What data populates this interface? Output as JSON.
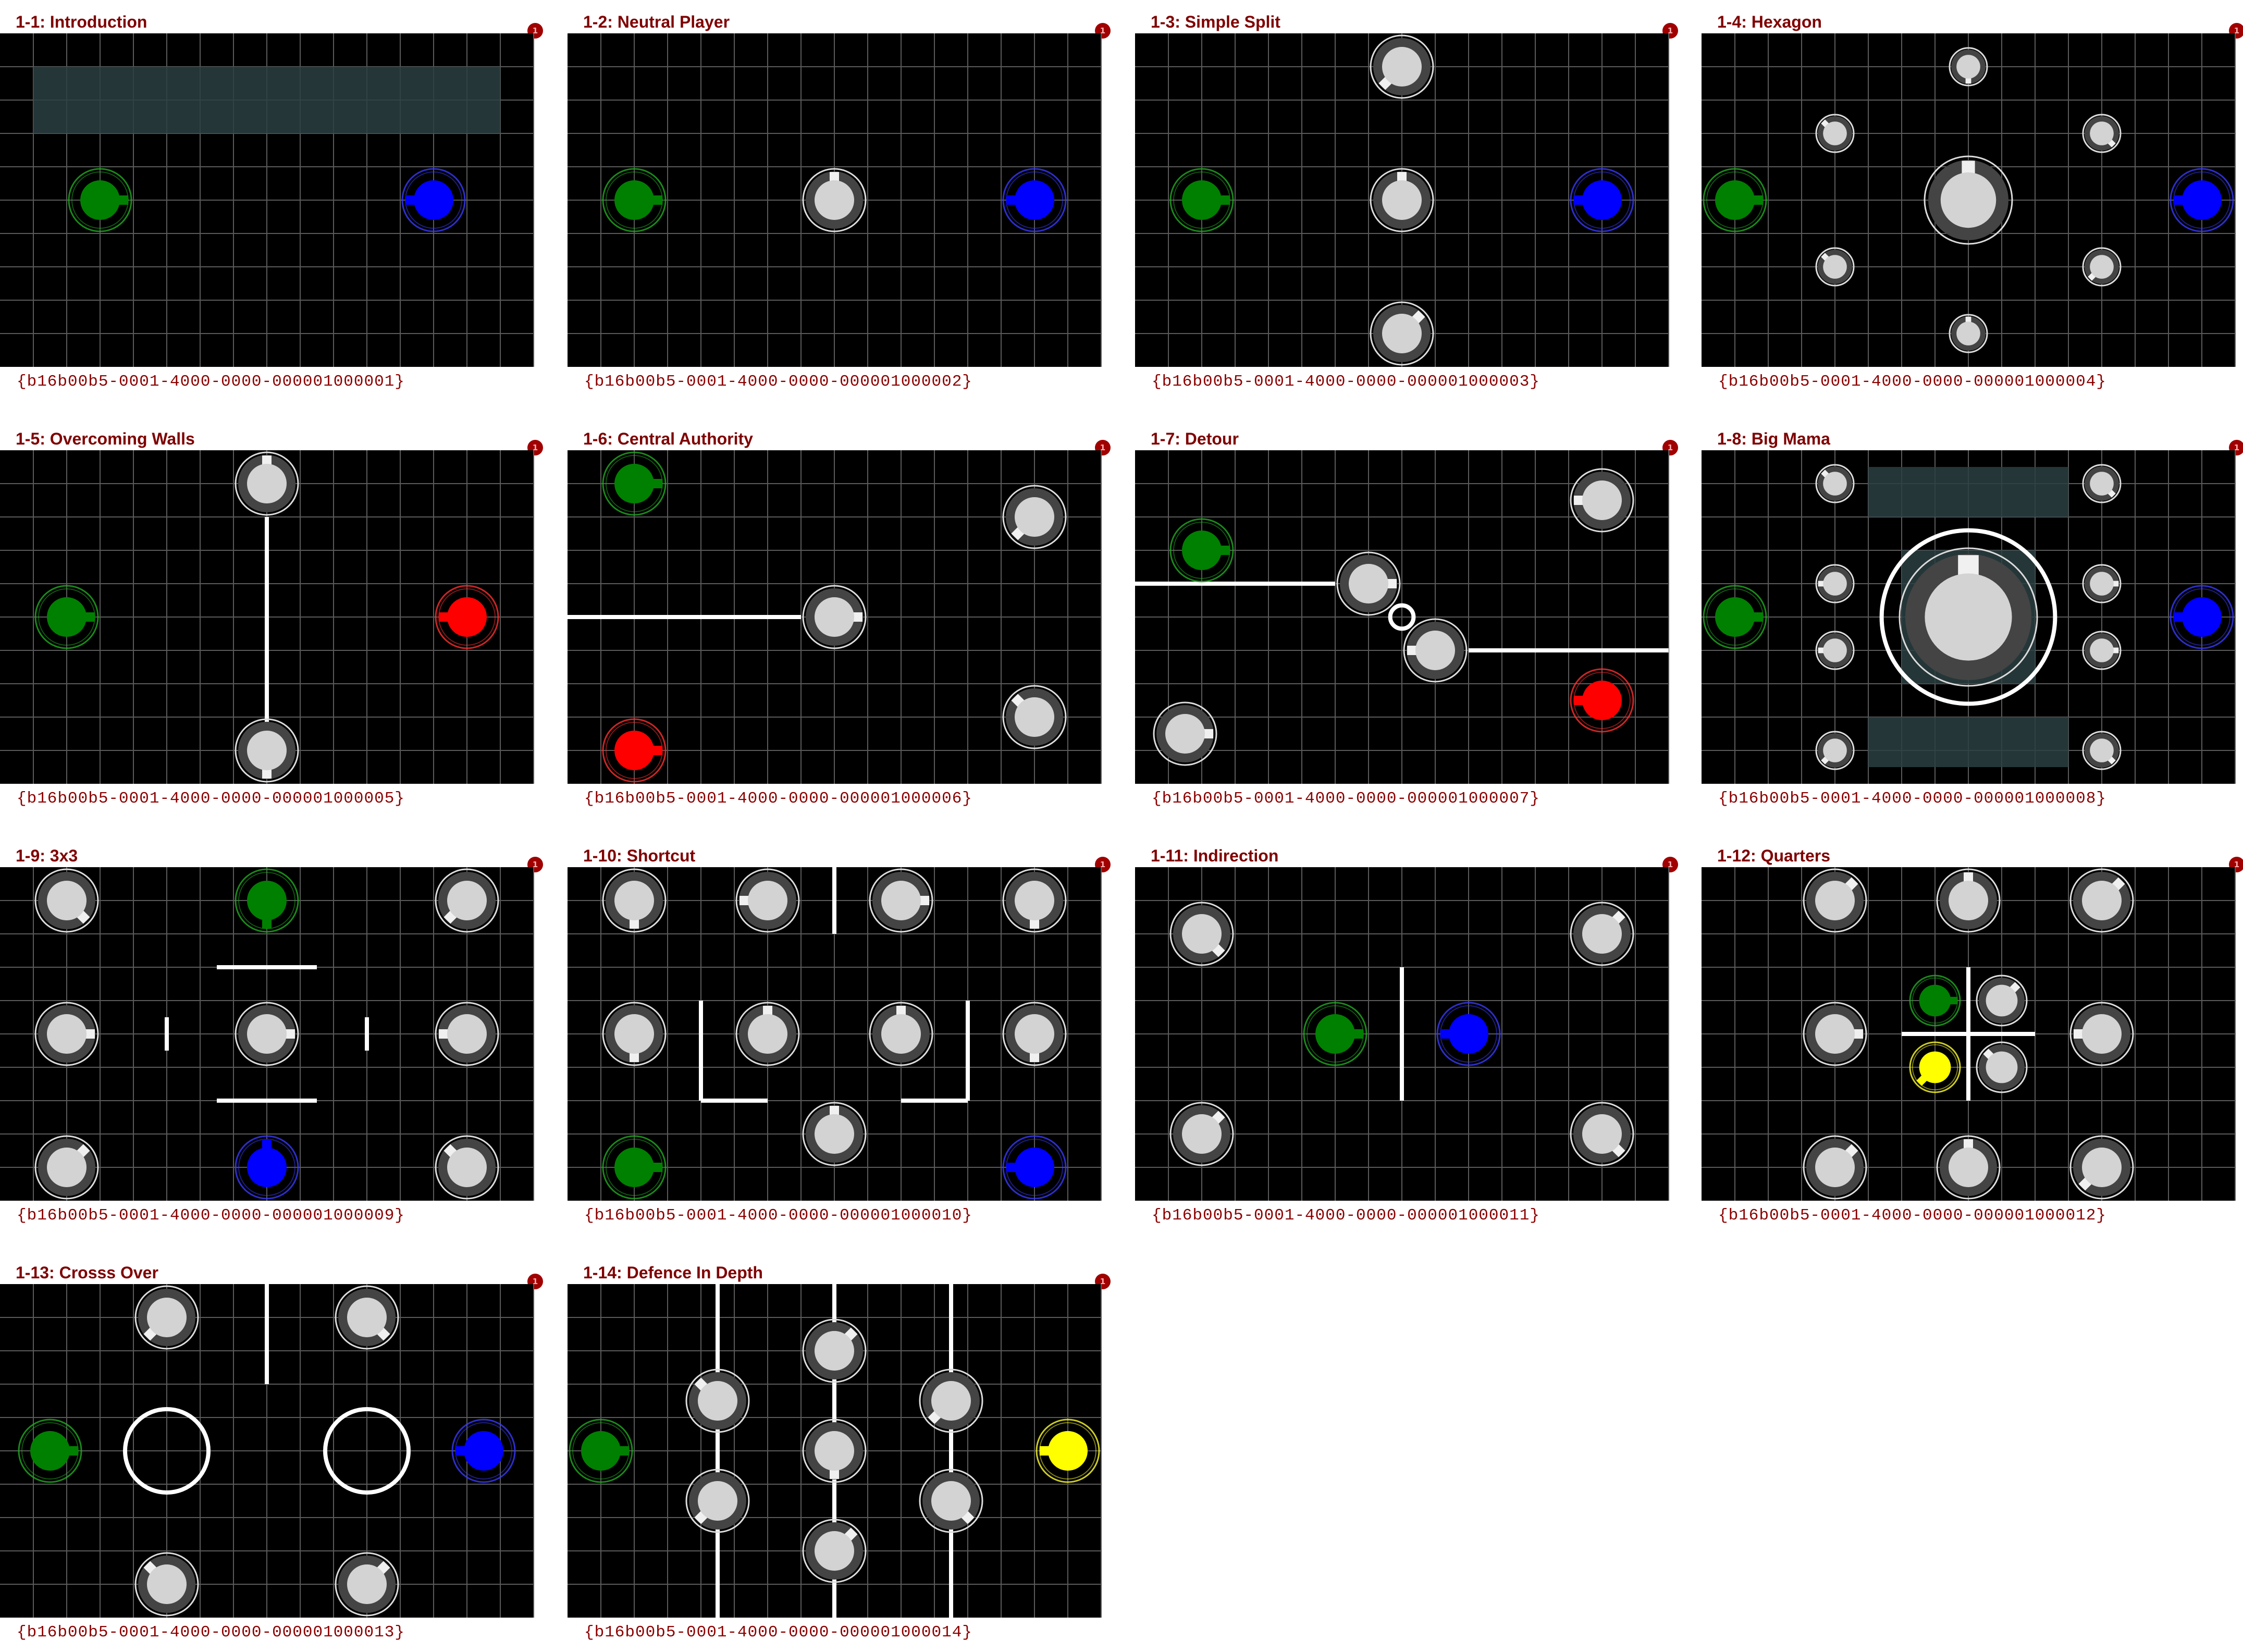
{
  "colors": {
    "background": "#000000",
    "grid": "#5a5a5a",
    "neutral": "#d3d3d3",
    "green": "#008000",
    "blue": "#0000ff",
    "red": "#ff0000",
    "yellow": "#ffff00",
    "wall": "#ffffff",
    "zone": "#2b3f42",
    "title": "#7f0000",
    "badge": "#a00000"
  },
  "levels": [
    {
      "title": "1-1: Introduction",
      "guid": "{b16b00b5-0001-4000-0000-000001000001}",
      "badge": "1",
      "zones": [
        [
          1,
          1,
          15,
          3
        ]
      ],
      "walls": [],
      "nodes": [
        [
          "green",
          3,
          5,
          1,
          0
        ],
        [
          "blue",
          13,
          5,
          1,
          180
        ]
      ]
    },
    {
      "title": "1-2: Neutral Player",
      "guid": "{b16b00b5-0001-4000-0000-000001000002}",
      "badge": "1",
      "zones": [],
      "walls": [],
      "nodes": [
        [
          "green",
          2,
          5,
          1,
          0
        ],
        [
          "neutral",
          8,
          5,
          1,
          270
        ],
        [
          "blue",
          14,
          5,
          1,
          180
        ]
      ]
    },
    {
      "title": "1-3: Simple Split",
      "guid": "{b16b00b5-0001-4000-0000-000001000003}",
      "badge": "1",
      "zones": [],
      "walls": [],
      "nodes": [
        [
          "green",
          2,
          5,
          1,
          0
        ],
        [
          "neutral",
          8,
          1,
          1,
          135
        ],
        [
          "neutral",
          8,
          5,
          1,
          270
        ],
        [
          "neutral",
          8,
          9,
          1,
          315
        ],
        [
          "blue",
          14,
          5,
          1,
          180
        ]
      ]
    },
    {
      "title": "1-4: Hexagon",
      "guid": "{b16b00b5-0001-4000-0000-000001000004}",
      "badge": "1",
      "zones": [],
      "walls": [],
      "nodes": [
        [
          "green",
          1,
          5,
          1,
          0
        ],
        [
          "neutral",
          8,
          1,
          0.6,
          90
        ],
        [
          "neutral",
          4,
          3,
          0.6,
          225
        ],
        [
          "neutral",
          12,
          3,
          0.6,
          45
        ],
        [
          "neutral",
          8,
          5,
          1.4,
          270
        ],
        [
          "neutral",
          4,
          7,
          0.6,
          225
        ],
        [
          "neutral",
          12,
          7,
          0.6,
          135
        ],
        [
          "neutral",
          8,
          9,
          0.6,
          270
        ],
        [
          "blue",
          15,
          5,
          1,
          180
        ]
      ]
    },
    {
      "title": "1-5: Overcoming Walls",
      "guid": "{b16b00b5-0001-4000-0000-000001000005}",
      "badge": "1",
      "zones": [],
      "walls": [
        [
          8,
          2,
          8,
          9
        ]
      ],
      "nodes": [
        [
          "green",
          2,
          5,
          1,
          0
        ],
        [
          "neutral",
          8,
          1,
          1,
          270
        ],
        [
          "neutral",
          8,
          9,
          1,
          90
        ],
        [
          "red",
          14,
          5,
          1,
          180
        ]
      ]
    },
    {
      "title": "1-6: Central Authority",
      "guid": "{b16b00b5-0001-4000-0000-000001000006}",
      "badge": "1",
      "zones": [],
      "walls": [
        [
          0,
          5,
          7,
          5
        ]
      ],
      "nodes": [
        [
          "green",
          2,
          1,
          1,
          0
        ],
        [
          "neutral",
          14,
          2,
          1,
          135
        ],
        [
          "neutral",
          8,
          5,
          1,
          0
        ],
        [
          "neutral",
          14,
          8,
          1,
          225
        ],
        [
          "red",
          2,
          9,
          1,
          0
        ]
      ]
    },
    {
      "title": "1-7: Detour",
      "guid": "{b16b00b5-0001-4000-0000-000001000007}",
      "badge": "1",
      "zones": [],
      "walls": [
        [
          0,
          4,
          6,
          4
        ],
        [
          10,
          6,
          16,
          6
        ]
      ],
      "rings": [
        [
          8,
          5,
          0.35
        ]
      ],
      "nodes": [
        [
          "green",
          2,
          3,
          1,
          0
        ],
        [
          "neutral",
          14,
          1.5,
          1,
          180
        ],
        [
          "neutral",
          7,
          4,
          1,
          0
        ],
        [
          "neutral",
          9,
          6,
          1,
          180
        ],
        [
          "red",
          14,
          7.5,
          1,
          180
        ],
        [
          "neutral",
          1.5,
          8.5,
          1,
          0
        ]
      ]
    },
    {
      "title": "1-8: Big Mama",
      "guid": "{b16b00b5-0001-4000-0000-000001000008}",
      "badge": "1",
      "zones": [
        [
          5,
          0.5,
          11,
          2
        ],
        [
          5,
          8,
          11,
          9.5
        ],
        [
          6,
          3,
          10,
          7
        ]
      ],
      "walls": [],
      "rings": [
        [
          8,
          5,
          2.6
        ]
      ],
      "nodes": [
        [
          "green",
          1,
          5,
          1,
          0
        ],
        [
          "neutral",
          4,
          1,
          0.6,
          225
        ],
        [
          "neutral",
          12,
          1,
          0.6,
          45
        ],
        [
          "neutral",
          4,
          4,
          0.6,
          180
        ],
        [
          "neutral",
          12,
          4,
          0.6,
          0
        ],
        [
          "neutral",
          8,
          5,
          2.2,
          270
        ],
        [
          "neutral",
          4,
          6,
          0.6,
          180
        ],
        [
          "neutral",
          12,
          6,
          0.6,
          0
        ],
        [
          "neutral",
          4,
          9,
          0.6,
          135
        ],
        [
          "neutral",
          12,
          9,
          0.6,
          45
        ],
        [
          "blue",
          15,
          5,
          1,
          180
        ]
      ]
    },
    {
      "title": "1-9: 3x3",
      "guid": "{b16b00b5-0001-4000-0000-000001000009}",
      "badge": "1",
      "zones": [],
      "walls": [
        [
          6.5,
          3,
          9.5,
          3
        ],
        [
          6.5,
          7,
          9.5,
          7
        ],
        [
          5,
          4.5,
          5,
          5.5
        ],
        [
          11,
          4.5,
          11,
          5.5
        ]
      ],
      "nodes": [
        [
          "neutral",
          2,
          1,
          1,
          45
        ],
        [
          "green",
          8,
          1,
          1,
          90
        ],
        [
          "neutral",
          14,
          1,
          1,
          135
        ],
        [
          "neutral",
          2,
          5,
          1,
          0
        ],
        [
          "neutral",
          8,
          5,
          1,
          0
        ],
        [
          "neutral",
          14,
          5,
          1,
          180
        ],
        [
          "neutral",
          2,
          9,
          1,
          315
        ],
        [
          "blue",
          8,
          9,
          1,
          270
        ],
        [
          "neutral",
          14,
          9,
          1,
          225
        ]
      ]
    },
    {
      "title": "1-10: Shortcut",
      "guid": "{b16b00b5-0001-4000-0000-000001000010}",
      "badge": "1",
      "zones": [],
      "walls": [
        [
          8,
          0,
          8,
          2
        ],
        [
          4,
          4,
          4,
          7
        ],
        [
          4,
          7,
          6,
          7
        ],
        [
          12,
          4,
          12,
          7
        ],
        [
          10,
          7,
          12,
          7
        ]
      ],
      "nodes": [
        [
          "neutral",
          2,
          1,
          1,
          90
        ],
        [
          "neutral",
          6,
          1,
          1,
          180
        ],
        [
          "neutral",
          10,
          1,
          1,
          0
        ],
        [
          "neutral",
          14,
          1,
          1,
          90
        ],
        [
          "neutral",
          2,
          5,
          1,
          90
        ],
        [
          "neutral",
          6,
          5,
          1,
          270
        ],
        [
          "neutral",
          10,
          5,
          1,
          270
        ],
        [
          "neutral",
          14,
          5,
          1,
          90
        ],
        [
          "neutral",
          8,
          8,
          1,
          270
        ],
        [
          "green",
          2,
          9,
          1,
          0
        ],
        [
          "blue",
          14,
          9,
          1,
          180
        ]
      ]
    },
    {
      "title": "1-11: Indirection",
      "guid": "{b16b00b5-0001-4000-0000-000001000011}",
      "badge": "1",
      "zones": [],
      "walls": [
        [
          8,
          3,
          8,
          7
        ]
      ],
      "nodes": [
        [
          "neutral",
          2,
          2,
          1,
          45
        ],
        [
          "neutral",
          14,
          2,
          1,
          315
        ],
        [
          "green",
          6,
          5,
          1,
          0
        ],
        [
          "blue",
          10,
          5,
          1,
          180
        ],
        [
          "neutral",
          2,
          8,
          1,
          315
        ],
        [
          "neutral",
          14,
          8,
          1,
          45
        ]
      ]
    },
    {
      "title": "1-12: Quarters",
      "guid": "{b16b00b5-0001-4000-0000-000001000012}",
      "badge": "1",
      "zones": [],
      "walls": [
        [
          6,
          5,
          10,
          5
        ],
        [
          8,
          3,
          8,
          7
        ]
      ],
      "nodes": [
        [
          "neutral",
          4,
          1,
          1,
          315
        ],
        [
          "neutral",
          8,
          1,
          1,
          270
        ],
        [
          "neutral",
          12,
          1,
          1,
          315
        ],
        [
          "green",
          7,
          4,
          0.8,
          0
        ],
        [
          "neutral",
          9,
          4,
          0.8,
          315
        ],
        [
          "neutral",
          4,
          5,
          1,
          0
        ],
        [
          "neutral",
          12,
          5,
          1,
          180
        ],
        [
          "yellow",
          7,
          6,
          0.8,
          135
        ],
        [
          "neutral",
          9,
          6,
          0.8,
          225
        ],
        [
          "neutral",
          4,
          9,
          1,
          315
        ],
        [
          "neutral",
          8,
          9,
          1,
          270
        ],
        [
          "neutral",
          12,
          9,
          1,
          135
        ]
      ]
    },
    {
      "title": "1-13: Crosss Over",
      "guid": "{b16b00b5-0001-4000-0000-000001000013}",
      "badge": "1",
      "zones": [],
      "walls": [
        [
          8,
          0,
          8,
          3
        ]
      ],
      "rings": [
        [
          5,
          5,
          1.25
        ],
        [
          11,
          5,
          1.25
        ]
      ],
      "nodes": [
        [
          "neutral",
          5,
          1,
          1,
          135
        ],
        [
          "neutral",
          11,
          1,
          1,
          45
        ],
        [
          "green",
          1.5,
          5,
          1,
          0
        ],
        [
          "blue",
          14.5,
          5,
          1,
          180
        ],
        [
          "neutral",
          5,
          9,
          1,
          225
        ],
        [
          "neutral",
          11,
          9,
          1,
          315
        ]
      ]
    },
    {
      "title": "1-14: Defence In Depth",
      "guid": "{b16b00b5-0001-4000-0000-000001000014}",
      "badge": "1",
      "zones": [],
      "walls": [
        [
          4.5,
          0,
          4.5,
          10
        ],
        [
          8,
          0,
          8,
          10
        ],
        [
          11.5,
          0,
          11.5,
          10
        ]
      ],
      "nodes": [
        [
          "green",
          1,
          5,
          1,
          0
        ],
        [
          "neutral",
          8,
          2,
          1,
          315
        ],
        [
          "neutral",
          4.5,
          3.5,
          1,
          225
        ],
        [
          "neutral",
          11.5,
          3.5,
          1,
          135
        ],
        [
          "neutral",
          8,
          5,
          1,
          90
        ],
        [
          "neutral",
          4.5,
          6.5,
          1,
          135
        ],
        [
          "neutral",
          11.5,
          6.5,
          1,
          45
        ],
        [
          "neutral",
          8,
          8,
          1,
          315
        ],
        [
          "yellow",
          15,
          5,
          1,
          180
        ]
      ]
    }
  ]
}
